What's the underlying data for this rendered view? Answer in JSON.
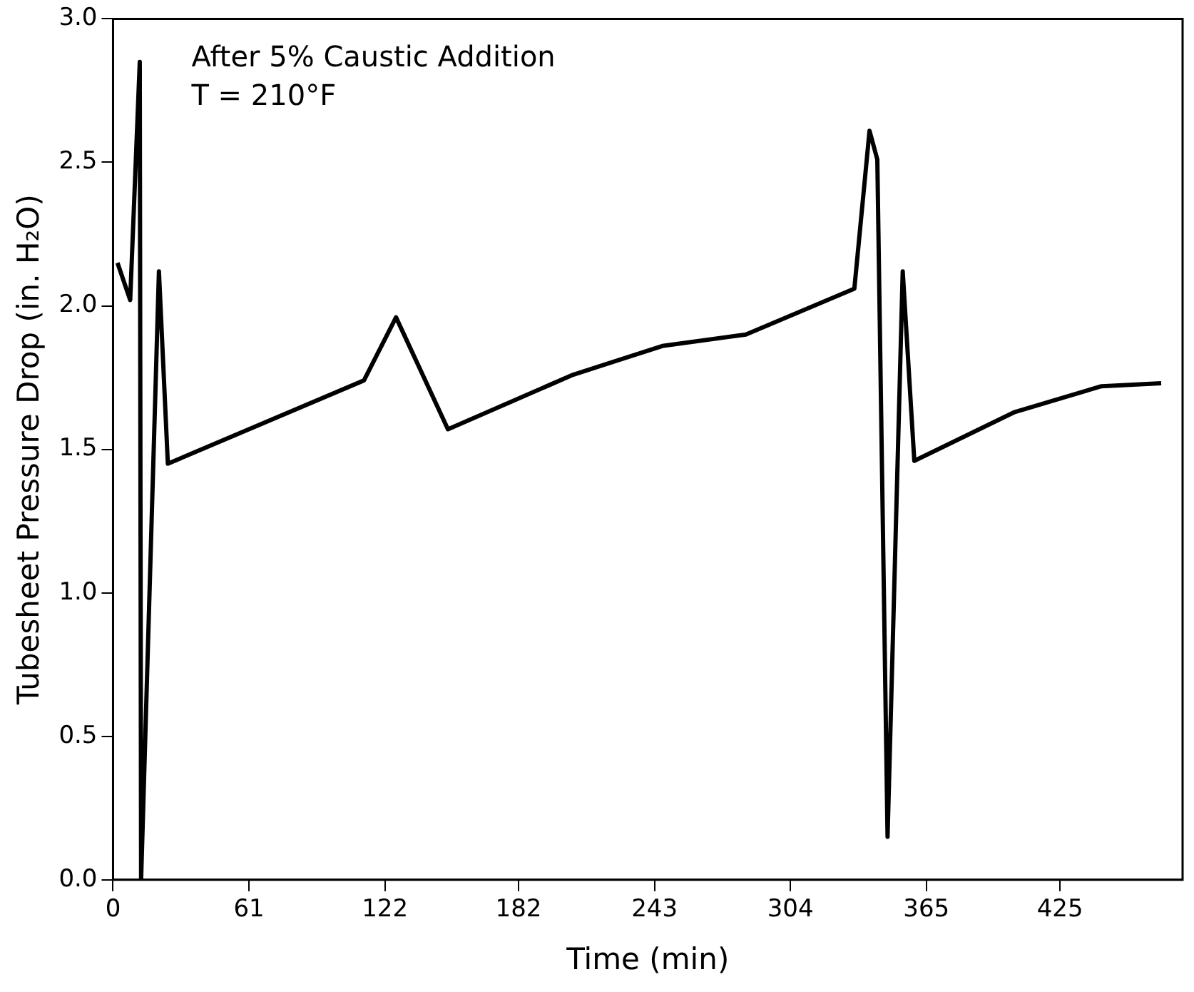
{
  "chart_data": {
    "type": "line",
    "xlabel": "Time (min)",
    "ylabel": "Tubesheet Pressure Drop (in. H₂O)",
    "annotations": [
      "After 5% Caustic Addition",
      "T = 210°F"
    ],
    "x": [
      2,
      7.7,
      12,
      12.6,
      20.6,
      24.6,
      112.6,
      127,
      150.3,
      206.5,
      246.5,
      284,
      332.7,
      339.5,
      343,
      347.6,
      354.4,
      359.6,
      404.7,
      443.6,
      470.4
    ],
    "series": [
      {
        "color": "#000000",
        "values": [
          2.15,
          2.02,
          2.85,
          0.0,
          2.12,
          1.45,
          1.74,
          1.96,
          1.57,
          1.76,
          1.86,
          1.9,
          2.06,
          2.61,
          2.51,
          0.15,
          2.12,
          1.46,
          1.63,
          1.72,
          1.73
        ]
      }
    ],
    "xlim": [
      0,
      480
    ],
    "xticks": [
      0,
      61,
      122,
      182,
      243,
      304,
      365,
      425
    ],
    "ylim": [
      0,
      3
    ],
    "yticks": [
      {
        "value": 0,
        "label": "0.0"
      },
      {
        "value": 0.5,
        "label": "0.5"
      },
      {
        "value": 1,
        "label": "1.0"
      },
      {
        "value": 1.5,
        "label": "1.5"
      },
      {
        "value": 2,
        "label": "2.0"
      },
      {
        "value": 2.5,
        "label": "2.5"
      },
      {
        "value": 3,
        "label": "3.0"
      }
    ],
    "grid": false,
    "legend": false,
    "marker": "none",
    "line_style": "solid"
  }
}
